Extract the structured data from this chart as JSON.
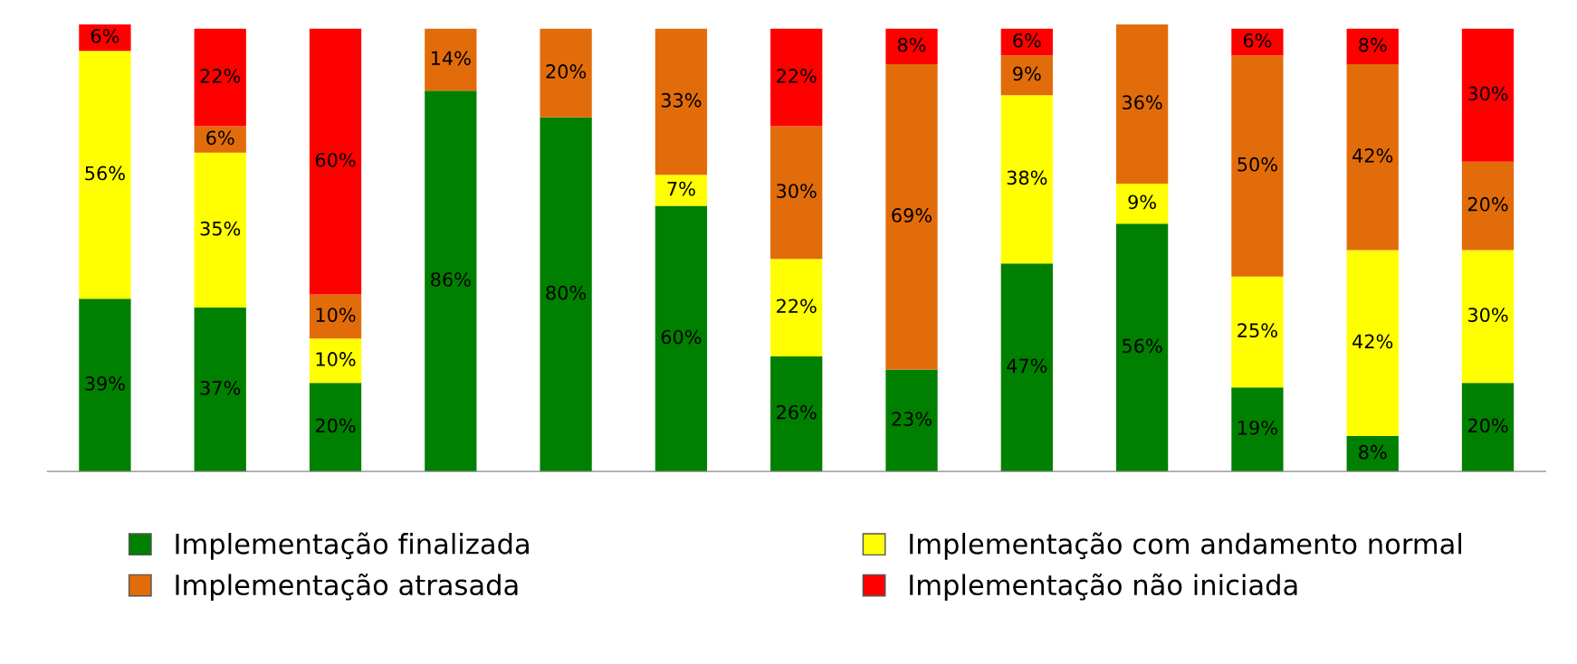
{
  "chart_data": {
    "type": "bar",
    "stacked": true,
    "legend": "bottom",
    "categories": [
      null,
      null,
      null,
      null,
      null,
      null,
      null,
      null,
      null,
      null,
      null,
      null,
      null
    ],
    "series": [
      {
        "name": "Implementação finalizada",
        "color": "#008000",
        "values": [
          39,
          37,
          20,
          86,
          80,
          60,
          26,
          23,
          47,
          56,
          19,
          8,
          20
        ],
        "value_labels": [
          "39%",
          "37%",
          "20%",
          "86%",
          "80%",
          "60%",
          "26%",
          "23%",
          "47%",
          "56%",
          "19%",
          "8%",
          "20%"
        ]
      },
      {
        "name": "Implementação com andamento normal",
        "color": "#ffff00",
        "values": [
          56,
          35,
          10,
          null,
          null,
          7,
          22,
          null,
          38,
          9,
          25,
          42,
          30
        ],
        "value_labels": [
          "56%",
          "35%",
          "10%",
          null,
          null,
          "7%",
          "22%",
          null,
          "38%",
          "9%",
          "25%",
          "42%",
          "30%"
        ]
      },
      {
        "name": "Implementação atrasada",
        "color": "#e36c0a",
        "values": [
          null,
          6,
          10,
          14,
          20,
          33,
          30,
          69,
          9,
          36,
          50,
          42,
          20
        ],
        "value_labels": [
          null,
          "6%",
          "10%",
          "14%",
          "20%",
          "33%",
          "30%",
          "69%",
          "9%",
          "36%",
          "50%",
          "42%",
          "20%"
        ]
      },
      {
        "name": "Implementação não iniciada",
        "color": "#ff0000",
        "values": [
          6,
          22,
          60,
          null,
          null,
          null,
          22,
          8,
          6,
          null,
          6,
          8,
          30
        ],
        "value_labels": [
          "6%",
          "22%",
          "60%",
          null,
          null,
          null,
          "22%",
          "8%",
          "6%",
          null,
          "6%",
          "8%",
          "30%"
        ]
      }
    ]
  }
}
